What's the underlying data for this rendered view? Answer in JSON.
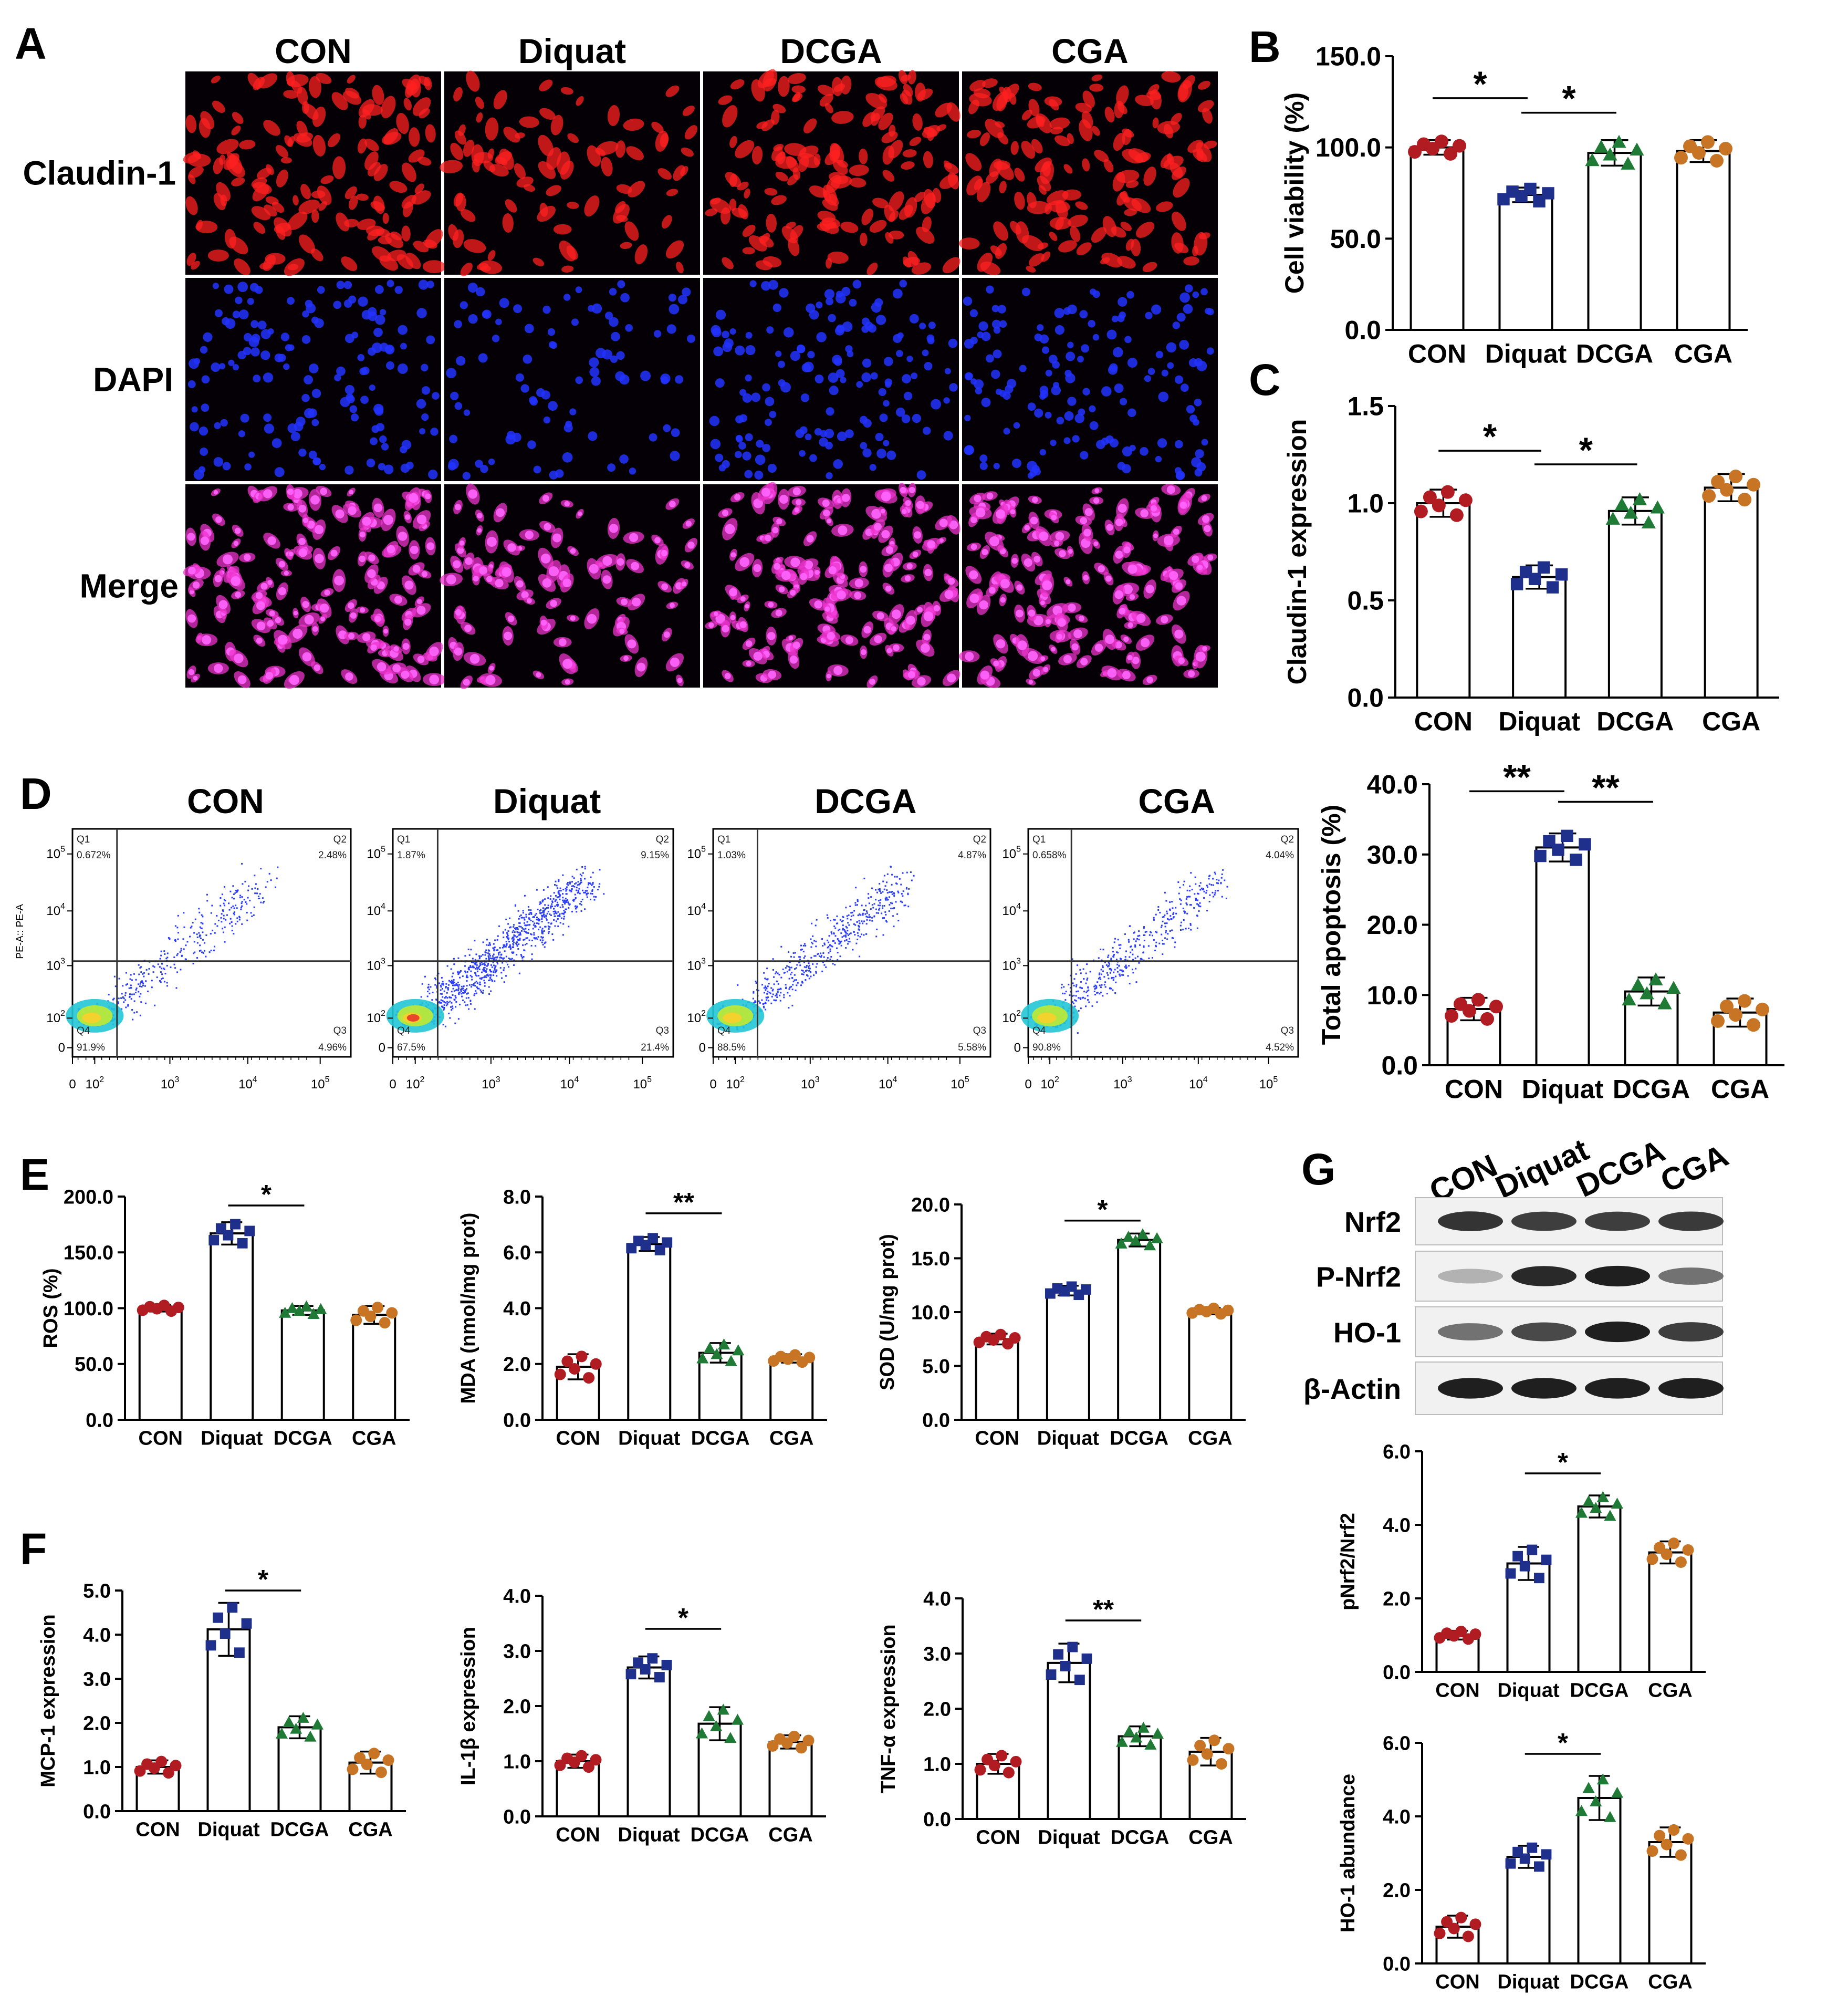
{
  "groups": [
    "CON",
    "Diquat",
    "DCGA",
    "CGA"
  ],
  "colors": {
    "CON": "#b01c22",
    "Diquat": "#1f2f8c",
    "DCGA": "#1f7a36",
    "CGA": "#c77525"
  },
  "micrograph": {
    "panel": "A",
    "column_labels": [
      "CON",
      "Diquat",
      "DCGA",
      "CGA"
    ],
    "row_labels": [
      "Claudin-1",
      "DAPI",
      "Merge"
    ],
    "row_colors": [
      "#ff2020",
      "#2233ff",
      "#ee33cc"
    ]
  },
  "flow": {
    "panel": "D",
    "titles": [
      "CON",
      "Diquat",
      "DCGA",
      "CGA"
    ],
    "y_axis_label": "PE-A:: PE-A",
    "x_ticks": [
      "0",
      "10^2",
      "10^3",
      "10^4",
      "10^5"
    ],
    "y_ticks": [
      "0",
      "10^2",
      "10^3",
      "10^4",
      "10^5"
    ],
    "quadrant_names": [
      "Q1",
      "Q2",
      "Q3",
      "Q4"
    ],
    "quadrants": [
      {
        "q1": "0.672%",
        "q2": "2.48%",
        "q3": "4.96%",
        "q4": "91.9%",
        "density": 0.35
      },
      {
        "q1": "1.87%",
        "q2": "9.15%",
        "q3": "21.4%",
        "q4": "67.5%",
        "density": 1.0
      },
      {
        "q1": "1.03%",
        "q2": "4.87%",
        "q3": "5.58%",
        "q4": "88.5%",
        "density": 0.55
      },
      {
        "q1": "0.658%",
        "q2": "4.04%",
        "q3": "4.52%",
        "q4": "90.8%",
        "density": 0.45
      }
    ]
  },
  "western": {
    "panel": "G",
    "lane_labels": [
      "CON",
      "Diquat",
      "DCGA",
      "CGA"
    ],
    "band_labels": [
      "Nrf2",
      "P-Nrf2",
      "HO-1",
      "β-Actin"
    ],
    "band_intensity": [
      [
        0.85,
        0.8,
        0.8,
        0.82
      ],
      [
        0.25,
        0.9,
        0.95,
        0.55
      ],
      [
        0.55,
        0.75,
        0.95,
        0.8
      ],
      [
        0.95,
        0.95,
        0.95,
        0.95
      ]
    ]
  },
  "chart_data": [
    {
      "type": "bar",
      "panel": "B",
      "title": "",
      "xlabel": "",
      "ylabel": "Cell viability (%)",
      "categories": [
        "CON",
        "Diquat",
        "DCGA",
        "CGA"
      ],
      "values": [
        100,
        74,
        97,
        98
      ],
      "errors": [
        4,
        4,
        7,
        6
      ],
      "ylim": [
        0,
        150
      ],
      "yticks": [
        "0.0",
        "50.0",
        "100.0",
        "150.0"
      ],
      "significance": [
        {
          "from": 0,
          "to": 1,
          "label": "*",
          "y": 127
        },
        {
          "from": 1,
          "to": 2,
          "label": "*",
          "y": 119
        }
      ]
    },
    {
      "type": "bar",
      "panel": "C",
      "title": "",
      "xlabel": "",
      "ylabel": "Claudin-1 expression",
      "categories": [
        "CON",
        "Diquat",
        "DCGA",
        "CGA"
      ],
      "values": [
        1.0,
        0.62,
        0.96,
        1.08
      ],
      "errors": [
        0.07,
        0.06,
        0.07,
        0.07
      ],
      "ylim": [
        0,
        1.5
      ],
      "yticks": [
        "0.0",
        "0.5",
        "1.0",
        "1.5"
      ],
      "significance": [
        {
          "from": 0,
          "to": 1,
          "label": "*",
          "y": 1.27
        },
        {
          "from": 1,
          "to": 2,
          "label": "*",
          "y": 1.2
        }
      ]
    },
    {
      "type": "bar",
      "panel": "D",
      "title": "",
      "xlabel": "",
      "ylabel": "Total apoptosis (%)",
      "categories": [
        "CON",
        "Diquat",
        "DCGA",
        "CGA"
      ],
      "values": [
        8,
        31,
        10.5,
        7.5
      ],
      "errors": [
        1.6,
        2,
        2,
        2
      ],
      "ylim": [
        0,
        40
      ],
      "yticks": [
        "0.0",
        "10.0",
        "20.0",
        "30.0",
        "40.0"
      ],
      "significance": [
        {
          "from": 0,
          "to": 1,
          "label": "**",
          "y": 39
        },
        {
          "from": 1,
          "to": 2,
          "label": "**",
          "y": 37.5
        }
      ]
    },
    {
      "type": "bar",
      "panel": "E",
      "title": "",
      "xlabel": "",
      "ylabel": "ROS  (%)",
      "categories": [
        "CON",
        "Diquat",
        "DCGA",
        "CGA"
      ],
      "values": [
        100,
        167,
        98,
        94
      ],
      "errors": [
        3,
        10,
        4,
        8
      ],
      "ylim": [
        0,
        200
      ],
      "yticks": [
        "0.0",
        "50.0",
        "100.0",
        "150.0",
        "200.0"
      ],
      "significance": [
        {
          "from": 1,
          "to": 2,
          "label": "*",
          "y": 192
        }
      ]
    },
    {
      "type": "bar",
      "panel": "E",
      "title": "",
      "xlabel": "",
      "ylabel": "MDA (nmol/mg prot)",
      "categories": [
        "CON",
        "Diquat",
        "DCGA",
        "CGA"
      ],
      "values": [
        1.9,
        6.3,
        2.4,
        2.2
      ],
      "errors": [
        0.45,
        0.25,
        0.35,
        0.15
      ],
      "ylim": [
        0,
        8
      ],
      "yticks": [
        "0.0",
        "2.0",
        "4.0",
        "6.0",
        "8.0"
      ],
      "significance": [
        {
          "from": 1,
          "to": 2,
          "label": "**",
          "y": 7.4
        }
      ]
    },
    {
      "type": "bar",
      "panel": "E",
      "title": "",
      "xlabel": "",
      "ylabel": "SOD (U/mg prot)",
      "categories": [
        "CON",
        "Diquat",
        "DCGA",
        "CGA"
      ],
      "values": [
        7.5,
        12,
        16.7,
        10.1
      ],
      "errors": [
        0.5,
        0.45,
        0.6,
        0.3
      ],
      "ylim": [
        0,
        20
      ],
      "yticks": [
        "0.0",
        "5.0",
        "10.0",
        "15.0",
        "20.0"
      ],
      "significance": [
        {
          "from": 1,
          "to": 2,
          "label": "*",
          "y": 18.5
        }
      ]
    },
    {
      "type": "bar",
      "panel": "F",
      "title": "",
      "xlabel": "",
      "ylabel": "MCP-1 expression",
      "categories": [
        "CON",
        "Diquat",
        "DCGA",
        "CGA"
      ],
      "values": [
        1.0,
        4.12,
        1.9,
        1.1
      ],
      "errors": [
        0.15,
        0.6,
        0.25,
        0.25
      ],
      "ylim": [
        0,
        5
      ],
      "yticks": [
        "0.0",
        "1.0",
        "2.0",
        "3.0",
        "4.0",
        "5.0"
      ],
      "significance": [
        {
          "from": 1,
          "to": 2,
          "label": "*",
          "y": 5.0
        }
      ]
    },
    {
      "type": "bar",
      "panel": "F",
      "title": "",
      "xlabel": "",
      "ylabel": "IL-1β expression",
      "categories": [
        "CON",
        "Diquat",
        "DCGA",
        "CGA"
      ],
      "values": [
        1.0,
        2.7,
        1.68,
        1.35
      ],
      "errors": [
        0.12,
        0.2,
        0.3,
        0.12
      ],
      "ylim": [
        0,
        4
      ],
      "yticks": [
        "0.0",
        "1.0",
        "2.0",
        "3.0",
        "4.0"
      ],
      "significance": [
        {
          "from": 1,
          "to": 2,
          "label": "*",
          "y": 3.4
        }
      ]
    },
    {
      "type": "bar",
      "panel": "F",
      "title": "",
      "xlabel": "",
      "ylabel": "TNF-α expression",
      "categories": [
        "CON",
        "Diquat",
        "DCGA",
        "CGA"
      ],
      "values": [
        1.0,
        2.83,
        1.5,
        1.22
      ],
      "errors": [
        0.18,
        0.35,
        0.18,
        0.25
      ],
      "ylim": [
        0,
        4
      ],
      "yticks": [
        "0.0",
        "1.0",
        "2.0",
        "3.0",
        "4.0"
      ],
      "significance": [
        {
          "from": 1,
          "to": 2,
          "label": "**",
          "y": 3.6
        }
      ]
    },
    {
      "type": "bar",
      "panel": "G",
      "title": "",
      "xlabel": "",
      "ylabel": "pNrf2/Nrf2",
      "categories": [
        "CON",
        "Diquat",
        "DCGA",
        "CGA"
      ],
      "values": [
        1.0,
        2.95,
        4.5,
        3.25
      ],
      "errors": [
        0.12,
        0.45,
        0.3,
        0.3
      ],
      "ylim": [
        0,
        6
      ],
      "yticks": [
        "0.0",
        "2.0",
        "4.0",
        "6.0"
      ],
      "significance": [
        {
          "from": 1,
          "to": 2,
          "label": "*",
          "y": 5.4
        }
      ]
    },
    {
      "type": "bar",
      "panel": "G",
      "title": "",
      "xlabel": "",
      "ylabel": "HO-1 abundance",
      "categories": [
        "CON",
        "Diquat",
        "DCGA",
        "CGA"
      ],
      "values": [
        1.0,
        2.9,
        4.5,
        3.3
      ],
      "errors": [
        0.3,
        0.3,
        0.6,
        0.4
      ],
      "ylim": [
        0,
        6
      ],
      "yticks": [
        "0.0",
        "2.0",
        "4.0",
        "6.0"
      ],
      "significance": [
        {
          "from": 1,
          "to": 2,
          "label": "*",
          "y": 5.7
        }
      ]
    }
  ]
}
